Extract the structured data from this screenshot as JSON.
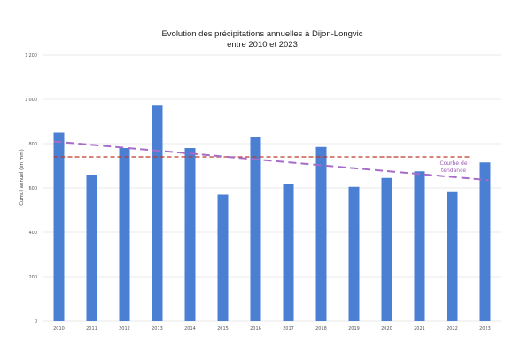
{
  "chart_data": {
    "type": "bar",
    "title_lines": [
      "Evolution des précipitations annuelles à Dijon-Longvic",
      "entre 2010 et 2023"
    ],
    "xlabel": "",
    "ylabel": "Cumul annuel (en mm)",
    "categories": [
      "2010",
      "2011",
      "2012",
      "2013",
      "2014",
      "2015",
      "2016",
      "2017",
      "2018",
      "2019",
      "2020",
      "2021",
      "2022",
      "2023"
    ],
    "values": [
      850,
      660,
      780,
      975,
      780,
      570,
      830,
      620,
      785,
      605,
      645,
      675,
      585,
      715
    ],
    "ylim": [
      0,
      1200
    ],
    "yticks": [
      0,
      200,
      400,
      600,
      800,
      1000,
      1200
    ],
    "grid": true,
    "bar_color": "#4a7fd4",
    "mean_line": {
      "value": 740,
      "color": "#c0392b"
    },
    "trend_line": {
      "start": 810,
      "end": 635,
      "color": "#a66cc8",
      "label": [
        "Courbe de",
        "tendance"
      ]
    }
  }
}
